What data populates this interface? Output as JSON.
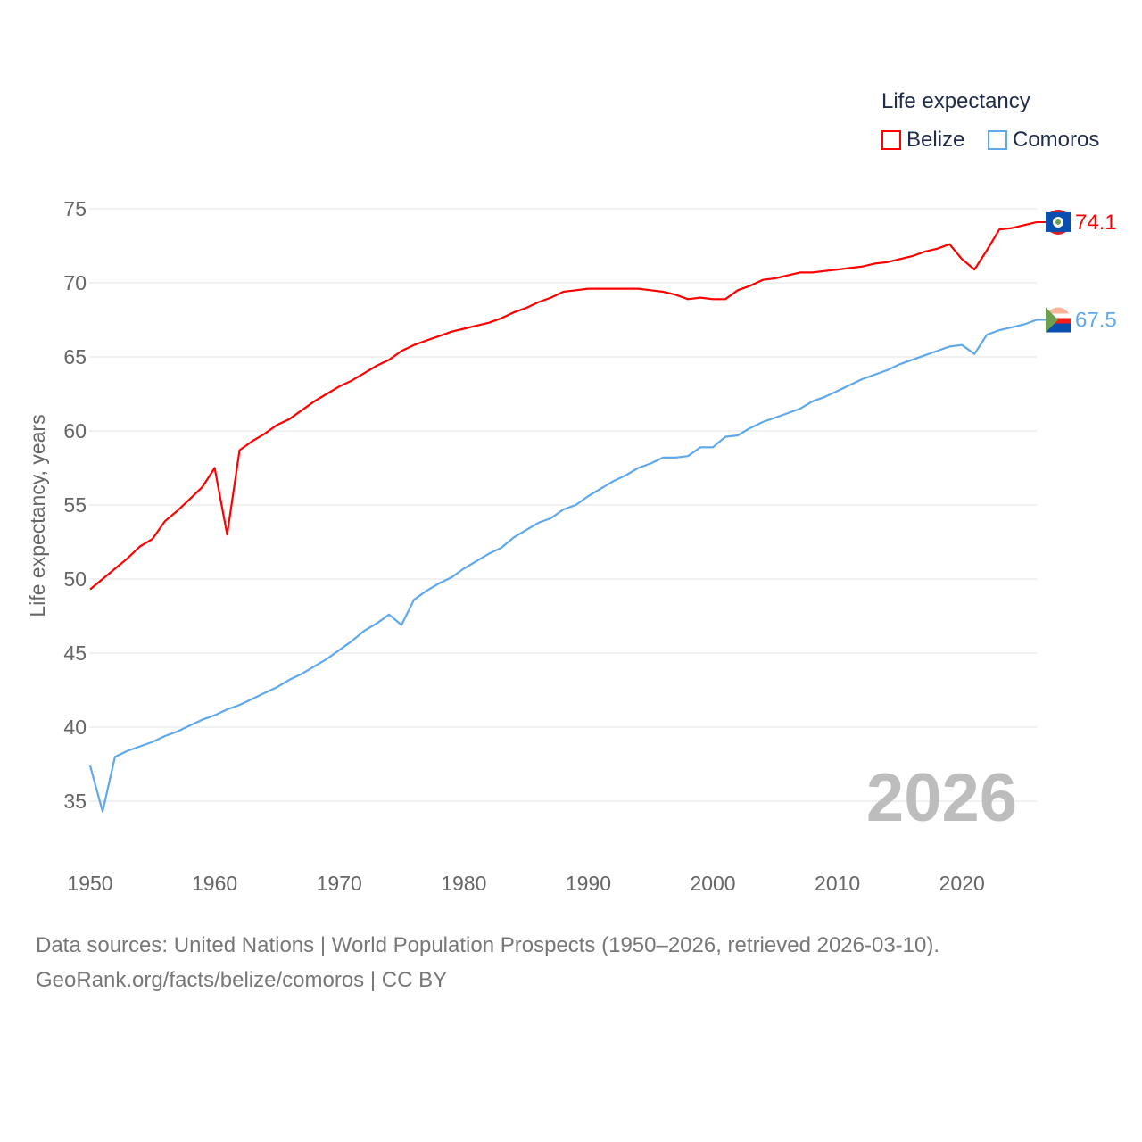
{
  "chart_data": {
    "type": "line",
    "title": "",
    "ylabel": "Life expectancy, years",
    "xlabel": "",
    "ylim": [
      35,
      75
    ],
    "xlim": [
      1950,
      2026
    ],
    "yticks": [
      35,
      40,
      45,
      50,
      55,
      60,
      65,
      70,
      75
    ],
    "xticks": [
      1950,
      1960,
      1970,
      1980,
      1990,
      2000,
      2010,
      2020
    ],
    "grid": true,
    "legend_title": "Life expectancy",
    "legend_position": "top-right",
    "year_watermark": "2026",
    "x_start": 1950,
    "series": [
      {
        "name": "Belize",
        "color": "#ff0000",
        "end_label": "74.1",
        "values": [
          49.3,
          50.0,
          50.7,
          51.4,
          52.2,
          52.7,
          53.9,
          54.6,
          55.4,
          56.2,
          57.5,
          53.0,
          58.7,
          59.3,
          59.8,
          60.4,
          60.8,
          61.4,
          62.0,
          62.5,
          63.0,
          63.4,
          63.9,
          64.4,
          64.8,
          65.4,
          65.8,
          66.1,
          66.4,
          66.7,
          66.9,
          67.1,
          67.3,
          67.6,
          68.0,
          68.3,
          68.7,
          69.0,
          69.4,
          69.5,
          69.6,
          69.6,
          69.6,
          69.6,
          69.6,
          69.5,
          69.4,
          69.2,
          68.9,
          69.0,
          68.9,
          68.9,
          69.5,
          69.8,
          70.2,
          70.3,
          70.5,
          70.7,
          70.7,
          70.8,
          70.9,
          71.0,
          71.1,
          71.3,
          71.4,
          71.6,
          71.8,
          72.1,
          72.3,
          72.6,
          71.6,
          70.9,
          72.2,
          73.6,
          73.7,
          73.9,
          74.1
        ]
      },
      {
        "name": "Comoros",
        "color": "#5fa8ec",
        "end_label": "67.5",
        "values": [
          37.4,
          34.3,
          38.0,
          38.4,
          38.7,
          39.0,
          39.4,
          39.7,
          40.1,
          40.5,
          40.8,
          41.2,
          41.5,
          41.9,
          42.3,
          42.7,
          43.2,
          43.6,
          44.1,
          44.6,
          45.2,
          45.8,
          46.5,
          47.0,
          47.6,
          46.9,
          48.6,
          49.2,
          49.7,
          50.1,
          50.7,
          51.2,
          51.7,
          52.1,
          52.8,
          53.3,
          53.8,
          54.1,
          54.7,
          55.0,
          55.6,
          56.1,
          56.6,
          57.0,
          57.5,
          57.8,
          58.2,
          58.2,
          58.3,
          58.9,
          58.9,
          59.6,
          59.7,
          60.2,
          60.6,
          60.9,
          61.2,
          61.5,
          62.0,
          62.3,
          62.7,
          63.1,
          63.5,
          63.8,
          64.1,
          64.5,
          64.8,
          65.1,
          65.4,
          65.7,
          65.8,
          65.2,
          66.5,
          66.8,
          67.0,
          67.2,
          67.5
        ]
      }
    ]
  },
  "footer": {
    "source_line": "Data sources: United Nations | World Population Prospects (1950–2026, retrieved 2026-03-10).",
    "credit_line": "GeoRank.org/facts/belize/comoros | CC BY"
  }
}
